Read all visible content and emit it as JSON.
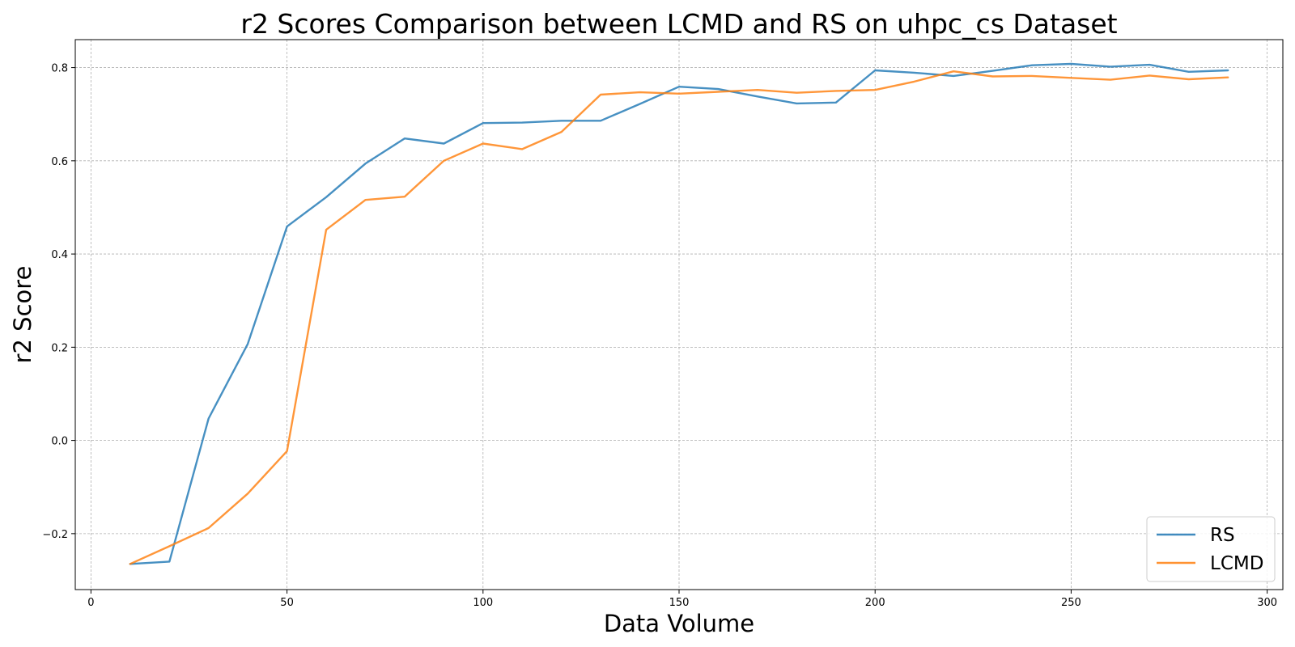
{
  "chart_data": {
    "type": "line",
    "title": "r2 Scores Comparison between LCMD and RS on uhpc_cs Dataset",
    "xlabel": "Data Volume",
    "ylabel": "r2 Score",
    "xlim": [
      -4,
      304
    ],
    "ylim": [
      -0.32,
      0.86
    ],
    "xticks": [
      0,
      50,
      100,
      150,
      200,
      250,
      300
    ],
    "yticks": [
      -0.2,
      0.0,
      0.2,
      0.4,
      0.6,
      0.8
    ],
    "xtick_labels": [
      "0",
      "50",
      "100",
      "150",
      "200",
      "250",
      "300"
    ],
    "ytick_labels": [
      "−0.2",
      "0.0",
      "0.2",
      "0.4",
      "0.6",
      "0.8"
    ],
    "grid": true,
    "legend_position": "lower-right",
    "x": [
      10,
      20,
      30,
      40,
      50,
      60,
      70,
      80,
      90,
      100,
      110,
      120,
      130,
      140,
      150,
      160,
      170,
      180,
      190,
      200,
      210,
      220,
      230,
      240,
      250,
      260,
      270,
      280,
      290
    ],
    "series": [
      {
        "name": "RS",
        "color": "#1f77b4",
        "values": [
          -0.265,
          -0.26,
          0.047,
          0.207,
          0.459,
          0.522,
          0.594,
          0.648,
          0.637,
          0.681,
          0.682,
          0.686,
          0.686,
          0.722,
          0.759,
          0.754,
          0.738,
          0.723,
          0.725,
          0.794,
          0.789,
          0.782,
          0.793,
          0.805,
          0.808,
          0.802,
          0.806,
          0.791,
          0.794
        ]
      },
      {
        "name": "LCMD",
        "color": "#ff7f0e",
        "values": [
          -0.265,
          -0.227,
          -0.188,
          -0.114,
          -0.023,
          0.452,
          0.516,
          0.523,
          0.6,
          0.637,
          0.625,
          0.662,
          0.742,
          0.747,
          0.744,
          0.748,
          0.752,
          0.746,
          0.75,
          0.752,
          0.77,
          0.792,
          0.781,
          0.782,
          0.778,
          0.774,
          0.783,
          0.775,
          0.779
        ]
      }
    ]
  }
}
